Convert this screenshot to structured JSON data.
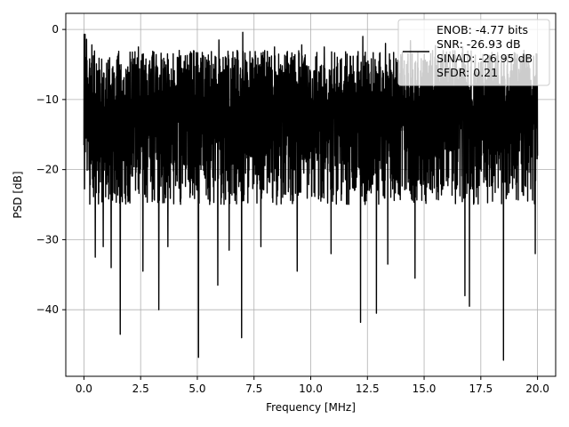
{
  "chart_data": {
    "type": "line",
    "title": "",
    "xlabel": "Frequency [MHz]",
    "ylabel": "PSD [dB]",
    "xlim": [
      -0.8,
      20.8
    ],
    "ylim": [
      -49.5,
      2.3
    ],
    "xticks": [
      0.0,
      2.5,
      5.0,
      7.5,
      10.0,
      12.5,
      15.0,
      17.5,
      20.0
    ],
    "xtick_labels": [
      "0.0",
      "2.5",
      "5.0",
      "7.5",
      "10.0",
      "12.5",
      "15.0",
      "17.5",
      "20.0"
    ],
    "yticks": [
      0,
      -10,
      -20,
      -30,
      -40
    ],
    "ytick_labels": [
      "0",
      "−10",
      "−20",
      "−30",
      "−40"
    ],
    "grid": true,
    "legend_position": "top-right",
    "line_color": "#000000",
    "legend_lines": [
      "ENOB: -4.77 bits",
      "SNR: -26.93 dB",
      "SINAD: -26.95 dB",
      "SFDR: 0.21"
    ],
    "series": [
      {
        "x_range": [
          0.0,
          20.0
        ],
        "noise_band": [
          -25,
          -3
        ],
        "peaks": [
          [
            0.05,
            -0.7
          ],
          [
            0.12,
            -1.4
          ],
          [
            0.35,
            -2.2
          ],
          [
            1.2,
            -3.5
          ],
          [
            2.4,
            -2.5
          ],
          [
            4.2,
            -3.0
          ],
          [
            5.95,
            -1.5
          ],
          [
            7.0,
            -0.4
          ],
          [
            8.4,
            -2.5
          ],
          [
            9.6,
            -2.2
          ],
          [
            10.6,
            -2.5
          ],
          [
            12.3,
            -1.0
          ],
          [
            13.3,
            -2.0
          ],
          [
            14.4,
            -1.6
          ],
          [
            15.5,
            -2.3
          ],
          [
            16.7,
            -2.5
          ],
          [
            18.5,
            -2.2
          ],
          [
            19.4,
            -3.0
          ]
        ],
        "dips": [
          [
            0.5,
            -32.5
          ],
          [
            0.85,
            -31.0
          ],
          [
            1.2,
            -34.0
          ],
          [
            1.6,
            -43.5
          ],
          [
            2.6,
            -34.5
          ],
          [
            3.3,
            -40.0
          ],
          [
            3.7,
            -31.0
          ],
          [
            5.05,
            -46.8
          ],
          [
            5.9,
            -36.5
          ],
          [
            6.4,
            -31.5
          ],
          [
            6.95,
            -44.0
          ],
          [
            7.8,
            -31.0
          ],
          [
            9.4,
            -34.5
          ],
          [
            10.9,
            -32.0
          ],
          [
            12.2,
            -41.8
          ],
          [
            12.9,
            -40.5
          ],
          [
            13.4,
            -33.5
          ],
          [
            14.6,
            -35.5
          ],
          [
            16.8,
            -38.0
          ],
          [
            17.0,
            -39.5
          ],
          [
            18.5,
            -47.2
          ],
          [
            19.9,
            -32.0
          ]
        ]
      }
    ]
  }
}
